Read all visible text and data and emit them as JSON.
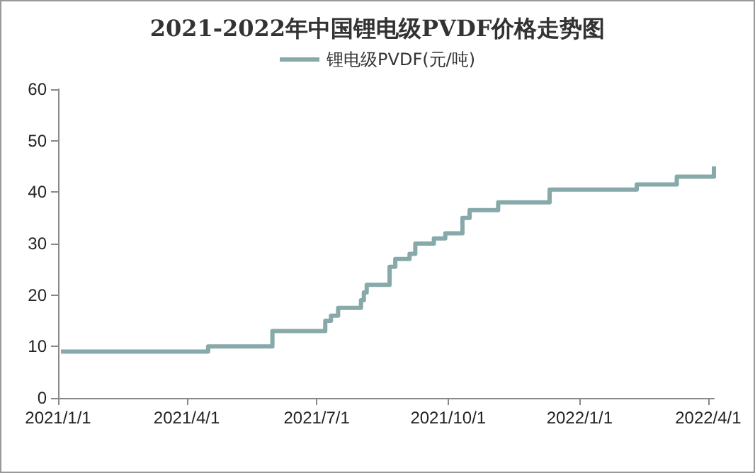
{
  "chart_data": {
    "type": "step",
    "title": "2021-2022年中国锂电级PVDF价格走势图",
    "x": [
      "2021-01-03",
      "2021-04-16",
      "2021-05-31",
      "2021-07-07",
      "2021-07-11",
      "2021-07-16",
      "2021-08-01",
      "2021-08-03",
      "2021-08-05",
      "2021-08-21",
      "2021-08-25",
      "2021-09-04",
      "2021-09-08",
      "2021-09-21",
      "2021-09-29",
      "2021-10-11",
      "2021-10-16",
      "2021-11-05",
      "2021-12-11",
      "2022-02-10",
      "2022-03-10",
      "2022-04-05"
    ],
    "series": [
      {
        "name": "锂电级PVDF(元/吨)",
        "color": "#87a9a9",
        "values": [
          9,
          10,
          13,
          15,
          16,
          17.5,
          19,
          20.5,
          22,
          25.5,
          27,
          28,
          30,
          31,
          32,
          35,
          36.5,
          38,
          40.5,
          41.5,
          43,
          45
        ]
      }
    ],
    "xlim": [
      "2021-01-01",
      "2022-04-05"
    ],
    "xticks": [
      {
        "value": "2021-01-01",
        "label": "2021/1/1"
      },
      {
        "value": "2021-04-01",
        "label": "2021/4/1"
      },
      {
        "value": "2021-07-01",
        "label": "2021/7/1"
      },
      {
        "value": "2021-10-01",
        "label": "2021/10/1"
      },
      {
        "value": "2022-01-01",
        "label": "2022/1/1"
      },
      {
        "value": "2022-04-01",
        "label": "2022/4/1"
      }
    ],
    "ylim": [
      0,
      60
    ],
    "yticks": [
      0,
      10,
      20,
      30,
      40,
      50,
      60
    ],
    "grid": false,
    "legend": "top"
  }
}
